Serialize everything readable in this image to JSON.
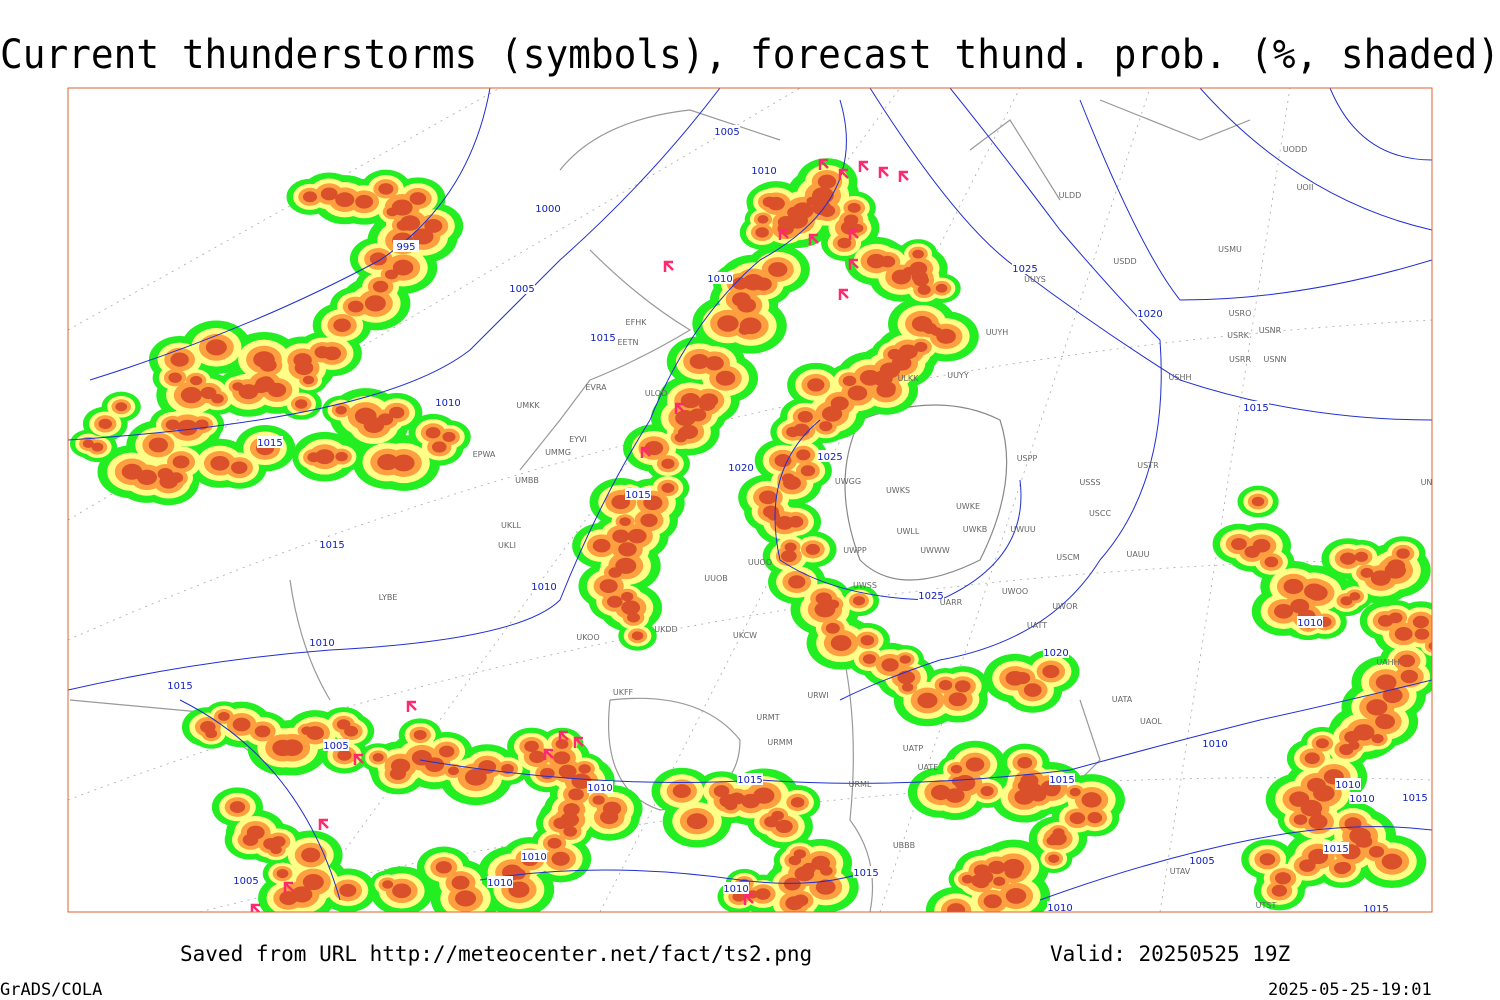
{
  "header": {
    "title": "Current thunderstorms (symbols), forecast thund. prob. (%, shaded)"
  },
  "isobar_labels": [
    1005,
    1010,
    1000,
    995,
    1005,
    1010,
    1025,
    1015,
    1020,
    1010,
    1015,
    1020,
    1025,
    1015,
    1015,
    1015,
    1010,
    1025,
    1010,
    1020,
    1015,
    1010,
    1005,
    1015,
    1010,
    1015,
    1010,
    1010,
    1010,
    1015,
    1015,
    1010,
    1005,
    1010,
    1010,
    1015,
    1005,
    1010,
    1015
  ],
  "station_labels": [
    "UODD",
    "UOII",
    "ULDD",
    "USMU",
    "USDD",
    "UUYS",
    "USRO",
    "USRK",
    "USNR",
    "USRR",
    "USNN",
    "USHH",
    "UUYH",
    "ULKK",
    "UUYY",
    "EFHK",
    "EETN",
    "EVRA",
    "UMKK",
    "ULOD",
    "EYVI",
    "EPWA",
    "UMMG",
    "UMBB",
    "USPP",
    "USTR",
    "USSS",
    "USCC",
    "UWGG",
    "UWKS",
    "UWKE",
    "UWKB",
    "UWUU",
    "UWLL",
    "UWWW",
    "UWPP",
    "USCM",
    "UAUU",
    "UUOO",
    "UWSS",
    "UARR",
    "UWOO",
    "UWOR",
    "UATT",
    "UAHH",
    "UATA",
    "UAOL",
    "UATE",
    "UATP",
    "URML",
    "UBBB",
    "UUOB",
    "UKDD",
    "UKCW",
    "UKOO",
    "UKFF",
    "URWI",
    "URMT",
    "URMM",
    "UKLL",
    "UKLI",
    "LYBE",
    "UTAV",
    "UTST",
    "UNBB"
  ],
  "footer": {
    "source": "Saved from URL http://meteocenter.net/fact/ts2.png",
    "valid": "Valid: 20250525 19Z",
    "software": "GrADS/COLA",
    "timestamp": "2025-05-25-19:01"
  }
}
